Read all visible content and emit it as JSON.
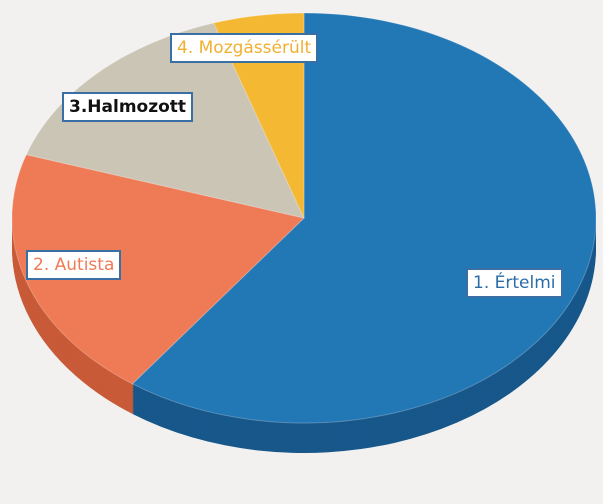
{
  "chart_data": {
    "type": "pie",
    "categories": [
      "1. Értelmi",
      "2. Autista",
      "3.Halmozott",
      "4. Mozgássérült"
    ],
    "values": [
      60,
      20,
      15,
      5
    ],
    "colors": [
      "#2277b5",
      "#ee7b56",
      "#cbc5b6",
      "#f4b833"
    ],
    "side_colors": [
      "#17578a",
      "#c85a38",
      "#a39d8e",
      "#c78e1c"
    ],
    "label_colors": [
      "#2a6ca8",
      "#ee7b56",
      "#111111",
      "#f0b030"
    ]
  }
}
